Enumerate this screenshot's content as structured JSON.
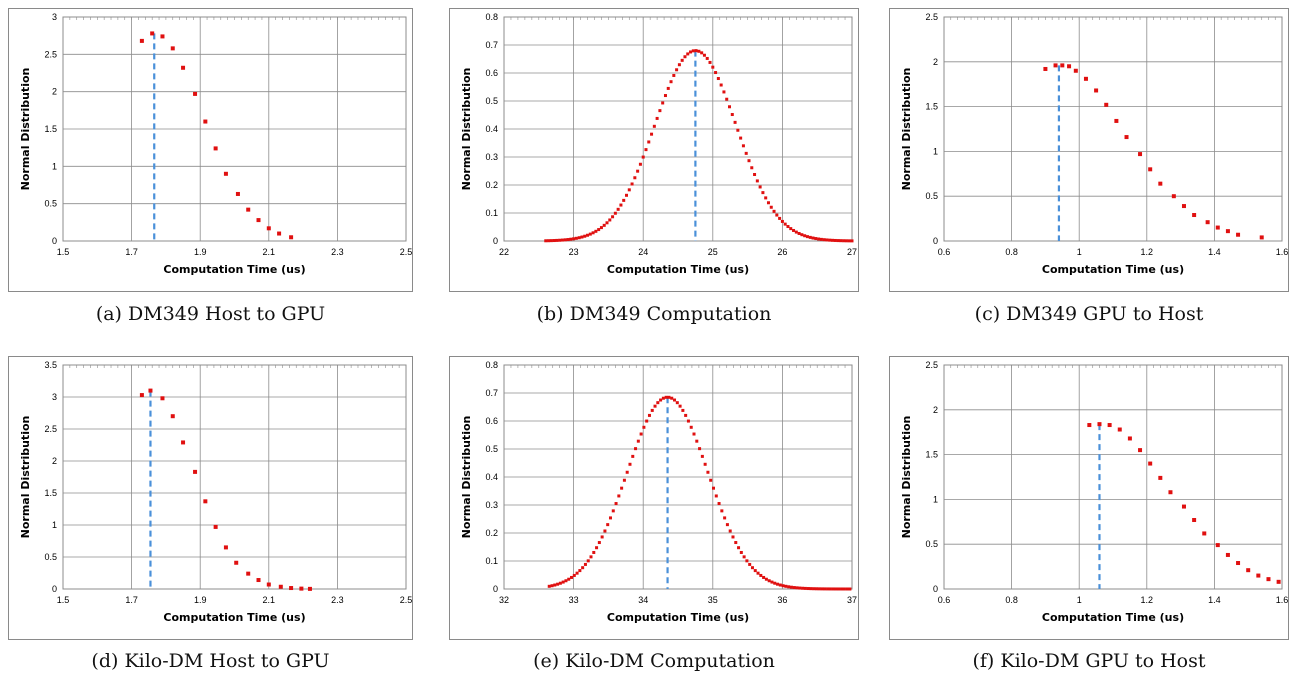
{
  "chart_data": [
    {
      "type": "scatter",
      "caption": "(a) DM349 Host to GPU",
      "xlabel": "Computation Time (us)",
      "ylabel": "Normal Distribution",
      "xlim": [
        1.5,
        2.5
      ],
      "ylim": [
        0,
        3
      ],
      "xticks": [
        "1.5",
        "1.7",
        "1.9",
        "2.1",
        "2.3",
        "2.5"
      ],
      "yticks": [
        "0",
        "0.5",
        "1",
        "1.5",
        "2",
        "2.5",
        "3"
      ],
      "grid": true,
      "marker_color": "#e01010",
      "peak_line_color": "#4a90d9",
      "peak_x": 1.766,
      "peak_y": 2.78,
      "points": [
        [
          1.73,
          2.68
        ],
        [
          1.76,
          2.78
        ],
        [
          1.79,
          2.74
        ],
        [
          1.82,
          2.58
        ],
        [
          1.85,
          2.32
        ],
        [
          1.885,
          1.97
        ],
        [
          1.915,
          1.6
        ],
        [
          1.945,
          1.24
        ],
        [
          1.975,
          0.9
        ],
        [
          2.01,
          0.63
        ],
        [
          2.04,
          0.42
        ],
        [
          2.07,
          0.28
        ],
        [
          2.1,
          0.17
        ],
        [
          2.13,
          0.1
        ],
        [
          2.165,
          0.05
        ]
      ]
    },
    {
      "type": "scatter",
      "caption": "(b) DM349 Computation",
      "xlabel": "Computation Time (us)",
      "ylabel": "Normal Distribution",
      "xlim": [
        22,
        27
      ],
      "ylim": [
        0,
        0.8
      ],
      "xticks": [
        "22",
        "23",
        "24",
        "25",
        "26",
        "27"
      ],
      "yticks": [
        "0",
        "0.1",
        "0.2",
        "0.3",
        "0.4",
        "0.5",
        "0.6",
        "0.7",
        "0.8"
      ],
      "grid": true,
      "marker_color": "#e01010",
      "peak_line_color": "#4a90d9",
      "peak_x": 24.75,
      "peak_y": 0.68,
      "gaussian": {
        "mean": 24.75,
        "sd": 0.586,
        "x_from": 22.6,
        "x_to": 27.0,
        "step": 0.04
      }
    },
    {
      "type": "scatter",
      "caption": "(c) DM349 GPU to Host",
      "xlabel": "Computation Time (us)",
      "ylabel": "Normal Distribution",
      "xlim": [
        0.6,
        1.6
      ],
      "ylim": [
        0,
        2.5
      ],
      "xticks": [
        "0.6",
        "0.8",
        "1",
        "1.2",
        "1.4",
        "1.6"
      ],
      "yticks": [
        "0",
        "0.5",
        "1",
        "1.5",
        "2",
        "2.5"
      ],
      "grid": true,
      "marker_color": "#e01010",
      "peak_line_color": "#4a90d9",
      "peak_x": 0.94,
      "peak_y": 1.96,
      "points": [
        [
          0.9,
          1.92
        ],
        [
          0.93,
          1.96
        ],
        [
          0.95,
          1.96
        ],
        [
          0.97,
          1.95
        ],
        [
          0.99,
          1.9
        ],
        [
          1.02,
          1.81
        ],
        [
          1.05,
          1.68
        ],
        [
          1.08,
          1.52
        ],
        [
          1.11,
          1.34
        ],
        [
          1.14,
          1.16
        ],
        [
          1.18,
          0.97
        ],
        [
          1.21,
          0.8
        ],
        [
          1.24,
          0.64
        ],
        [
          1.28,
          0.5
        ],
        [
          1.31,
          0.39
        ],
        [
          1.34,
          0.29
        ],
        [
          1.38,
          0.21
        ],
        [
          1.41,
          0.15
        ],
        [
          1.44,
          0.11
        ],
        [
          1.47,
          0.07
        ],
        [
          1.54,
          0.04
        ]
      ]
    },
    {
      "type": "scatter",
      "caption": "(d) Kilo-DM Host to GPU",
      "xlabel": "Computation Time (us)",
      "ylabel": "Normal Distribution",
      "xlim": [
        1.5,
        2.5
      ],
      "ylim": [
        0,
        3.5
      ],
      "xticks": [
        "1.5",
        "1.7",
        "1.9",
        "2.1",
        "2.3",
        "2.5"
      ],
      "yticks": [
        "0",
        "0.5",
        "1",
        "1.5",
        "2",
        "2.5",
        "3",
        "3.5"
      ],
      "grid": true,
      "marker_color": "#e01010",
      "peak_line_color": "#4a90d9",
      "peak_x": 1.755,
      "peak_y": 3.1,
      "points": [
        [
          1.73,
          3.03
        ],
        [
          1.755,
          3.1
        ],
        [
          1.79,
          2.98
        ],
        [
          1.82,
          2.7
        ],
        [
          1.85,
          2.29
        ],
        [
          1.885,
          1.83
        ],
        [
          1.915,
          1.37
        ],
        [
          1.945,
          0.97
        ],
        [
          1.975,
          0.65
        ],
        [
          2.005,
          0.41
        ],
        [
          2.04,
          0.24
        ],
        [
          2.07,
          0.14
        ],
        [
          2.1,
          0.07
        ],
        [
          2.135,
          0.035
        ],
        [
          2.165,
          0.015
        ],
        [
          2.195,
          0.006
        ],
        [
          2.22,
          0.002
        ]
      ]
    },
    {
      "type": "scatter",
      "caption": "(e) Kilo-DM Computation",
      "xlabel": "Computation Time (us)",
      "ylabel": "Normal Distribution",
      "xlim": [
        32,
        37
      ],
      "ylim": [
        0,
        0.8
      ],
      "xticks": [
        "32",
        "33",
        "34",
        "35",
        "36",
        "37"
      ],
      "yticks": [
        "0",
        "0.1",
        "0.2",
        "0.3",
        "0.4",
        "0.5",
        "0.6",
        "0.7",
        "0.8"
      ],
      "grid": true,
      "marker_color": "#e01010",
      "peak_line_color": "#4a90d9",
      "peak_x": 34.35,
      "peak_y": 0.685,
      "gaussian": {
        "mean": 34.35,
        "sd": 0.582,
        "x_from": 32.65,
        "x_to": 37.0,
        "step": 0.04
      }
    },
    {
      "type": "scatter",
      "caption": "(f) Kilo-DM GPU to Host",
      "xlabel": "Computation Time (us)",
      "ylabel": "Normal Distribution",
      "xlim": [
        0.6,
        1.6
      ],
      "ylim": [
        0,
        2.5
      ],
      "xticks": [
        "0.6",
        "0.8",
        "1",
        "1.2",
        "1.4",
        "1.6"
      ],
      "yticks": [
        "0",
        "0.5",
        "1",
        "1.5",
        "2",
        "2.5"
      ],
      "grid": true,
      "marker_color": "#e01010",
      "peak_line_color": "#4a90d9",
      "peak_x": 1.06,
      "peak_y": 1.84,
      "points": [
        [
          1.03,
          1.83
        ],
        [
          1.06,
          1.84
        ],
        [
          1.09,
          1.83
        ],
        [
          1.12,
          1.78
        ],
        [
          1.15,
          1.68
        ],
        [
          1.18,
          1.55
        ],
        [
          1.21,
          1.4
        ],
        [
          1.24,
          1.24
        ],
        [
          1.27,
          1.08
        ],
        [
          1.31,
          0.92
        ],
        [
          1.34,
          0.77
        ],
        [
          1.37,
          0.62
        ],
        [
          1.41,
          0.49
        ],
        [
          1.44,
          0.38
        ],
        [
          1.47,
          0.29
        ],
        [
          1.5,
          0.21
        ],
        [
          1.53,
          0.15
        ],
        [
          1.56,
          0.11
        ],
        [
          1.59,
          0.08
        ]
      ]
    }
  ]
}
